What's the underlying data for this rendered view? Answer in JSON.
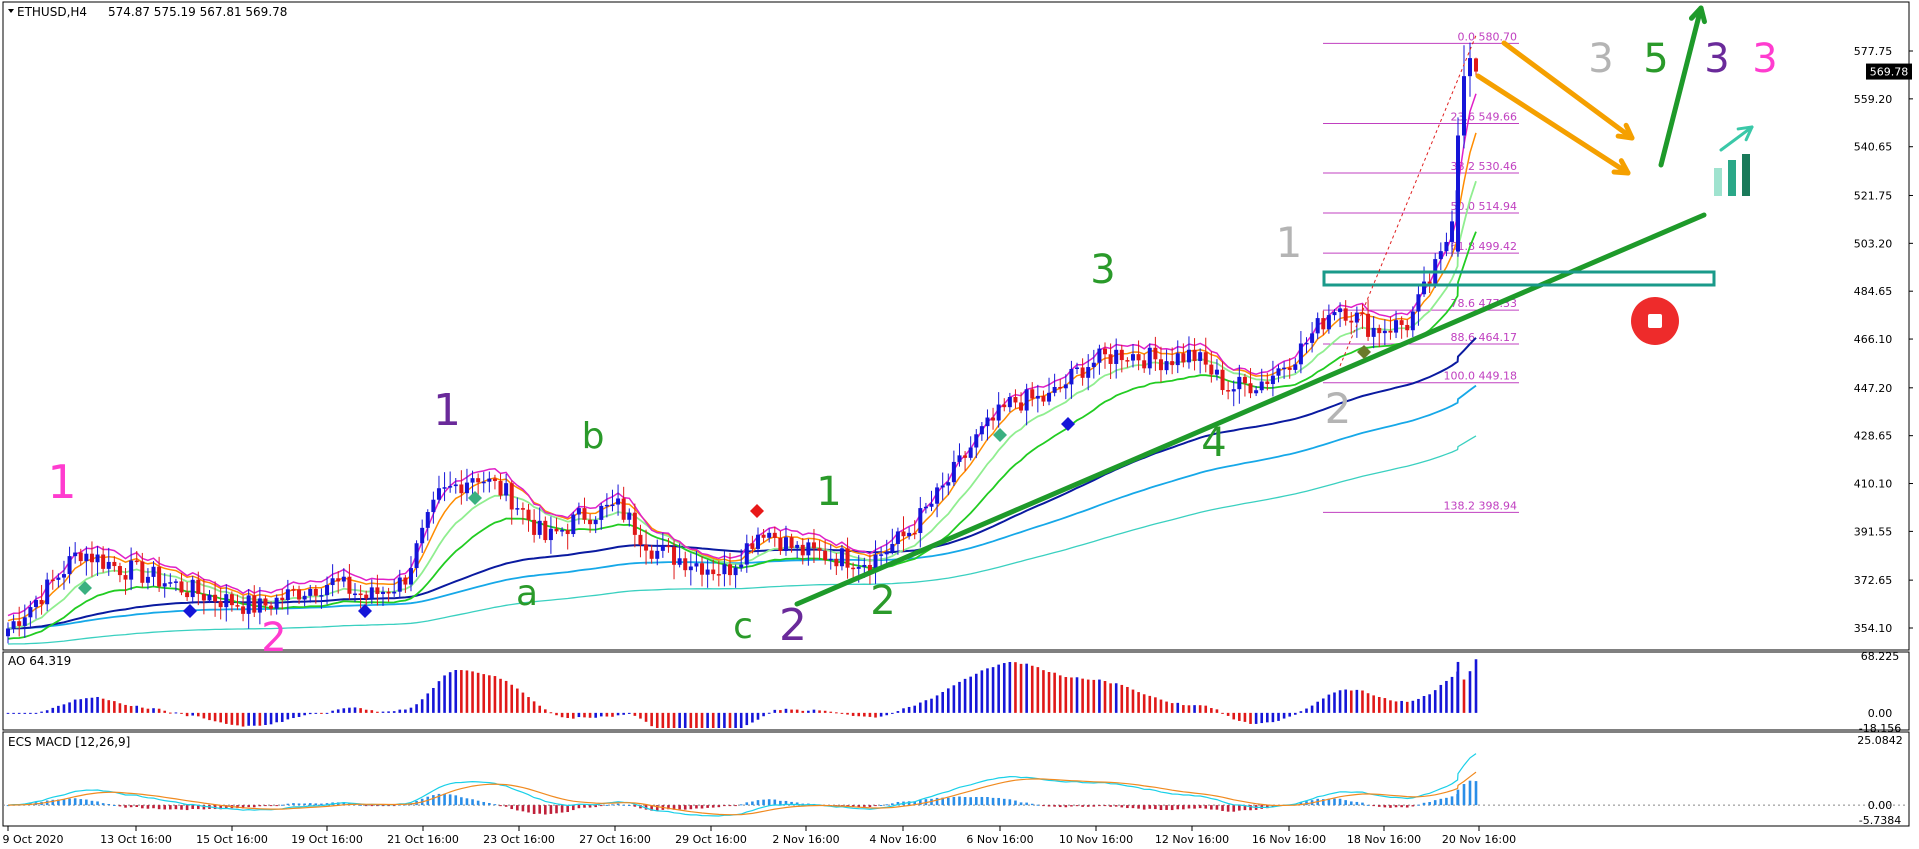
{
  "colors": {
    "bull": "#1515d8",
    "bear": "#e01818",
    "grid": "#c8c8c8",
    "fib": "#c040c0",
    "ema_pink": "#e020c8",
    "ema_orange": "#ff8c00",
    "ema_light_green": "#90ee90",
    "ema_green": "#22cc22",
    "ema_navy": "#0a1aa0",
    "ema_sky": "#16a8e8",
    "ema_cyan": "#3ad0c0",
    "trend": "#1e9a2a",
    "arrow_orange": "#f5a000",
    "box": "#1a9a8a",
    "wave_pink": "#ff3ccf",
    "wave_purple": "#6a2a9a",
    "wave_green": "#2a9a2a",
    "wave_gray": "#b4b4b4",
    "stop": "#ee2b2b"
  },
  "header": {
    "symbol": "ETHUSD,H4",
    "ohlc": "574.87 575.19 567.81 569.78"
  },
  "main_axis": {
    "ticks": [
      "577.75",
      "559.20",
      "540.65",
      "521.75",
      "503.20",
      "484.65",
      "466.10",
      "447.20",
      "428.65",
      "410.10",
      "391.55",
      "372.65",
      "354.10"
    ],
    "price_label": "569.78"
  },
  "fib_levels": [
    {
      "label": "0.0 580.70",
      "price": 580.7
    },
    {
      "label": "23.6 549.66",
      "price": 549.66
    },
    {
      "label": "38.2 530.46",
      "price": 530.46
    },
    {
      "label": "50.0 514.94",
      "price": 514.94
    },
    {
      "label": "61.8 499.42",
      "price": 499.42
    },
    {
      "label": "78.6 477.33",
      "price": 477.33
    },
    {
      "label": "88.6 464.17",
      "price": 464.17
    },
    {
      "label": "100.0 449.18",
      "price": 449.18
    },
    {
      "label": "138.2 398.94",
      "price": 398.94
    }
  ],
  "waves": [
    {
      "text": "1",
      "color": "wave_pink"
    },
    {
      "text": "2",
      "color": "wave_pink"
    },
    {
      "text": "1",
      "color": "wave_purple"
    },
    {
      "text": "a",
      "color": "wave_green"
    },
    {
      "text": "b",
      "color": "wave_green"
    },
    {
      "text": "c",
      "color": "wave_green"
    },
    {
      "text": "2",
      "color": "wave_purple"
    },
    {
      "text": "1",
      "color": "wave_green"
    },
    {
      "text": "2",
      "color": "wave_green"
    },
    {
      "text": "3",
      "color": "wave_green"
    },
    {
      "text": "4",
      "color": "wave_green"
    },
    {
      "text": "1",
      "color": "wave_gray"
    },
    {
      "text": "2",
      "color": "wave_gray"
    },
    {
      "text": "3",
      "color": "wave_gray"
    },
    {
      "text": "5",
      "color": "wave_green"
    },
    {
      "text": "3",
      "color": "wave_purple"
    },
    {
      "text": "3",
      "color": "wave_pink"
    }
  ],
  "ao": {
    "label": "AO 64.319",
    "ticks": [
      "68.225",
      "0.00",
      "-18.156"
    ]
  },
  "macd": {
    "label": "ECS MACD [12,26,9]",
    "ticks": [
      "25.0842",
      "0.00",
      "-5.7384"
    ]
  },
  "time_axis": [
    "9 Oct 2020",
    "13 Oct 16:00",
    "15 Oct 16:00",
    "19 Oct 16:00",
    "21 Oct 16:00",
    "23 Oct 16:00",
    "27 Oct 16:00",
    "29 Oct 16:00",
    "2 Nov 16:00",
    "4 Nov 16:00",
    "6 Nov 16:00",
    "10 Nov 16:00",
    "12 Nov 16:00",
    "16 Nov 16:00",
    "18 Nov 16:00",
    "20 Nov 16:00"
  ],
  "chart_data": [
    {
      "type": "candlestick",
      "title": "ETHUSD,H4",
      "ylim": [
        345,
        588
      ],
      "x_range": [
        "9 Oct 2020",
        "20 Nov 2020"
      ],
      "close_path": [
        {
          "t": "9 Oct 2020",
          "close": 354
        },
        {
          "t": "10 Oct",
          "close": 368
        },
        {
          "t": "11 Oct",
          "close": 384
        },
        {
          "t": "12 Oct",
          "close": 378
        },
        {
          "t": "13 Oct 16:00",
          "close": 374
        },
        {
          "t": "14 Oct",
          "close": 369
        },
        {
          "t": "15 Oct 16:00",
          "close": 365
        },
        {
          "t": "16 Oct",
          "close": 362
        },
        {
          "t": "17 Oct",
          "close": 368
        },
        {
          "t": "18 Oct",
          "close": 372
        },
        {
          "t": "19 Oct 16:00",
          "close": 366
        },
        {
          "t": "20 Oct",
          "close": 372
        },
        {
          "t": "21 Oct 16:00",
          "close": 405
        },
        {
          "t": "22 Oct",
          "close": 414
        },
        {
          "t": "23 Oct 16:00",
          "close": 405
        },
        {
          "t": "24 Oct",
          "close": 388
        },
        {
          "t": "26 Oct",
          "close": 398
        },
        {
          "t": "27 Oct 16:00",
          "close": 401
        },
        {
          "t": "28 Oct",
          "close": 384
        },
        {
          "t": "29 Oct 16:00",
          "close": 380
        },
        {
          "t": "30 Oct",
          "close": 376
        },
        {
          "t": "31 Oct",
          "close": 393
        },
        {
          "t": "1 Nov",
          "close": 384
        },
        {
          "t": "2 Nov 16:00",
          "close": 382
        },
        {
          "t": "3 Nov",
          "close": 380
        },
        {
          "t": "4 Nov 16:00",
          "close": 390
        },
        {
          "t": "5 Nov",
          "close": 407
        },
        {
          "t": "6 Nov 16:00",
          "close": 428
        },
        {
          "t": "7 Nov",
          "close": 442
        },
        {
          "t": "9 Nov",
          "close": 443
        },
        {
          "t": "10 Nov 16:00",
          "close": 456
        },
        {
          "t": "11 Nov",
          "close": 461
        },
        {
          "t": "12 Nov 16:00",
          "close": 458
        },
        {
          "t": "13 Nov",
          "close": 460
        },
        {
          "t": "14 Nov",
          "close": 447
        },
        {
          "t": "15 Nov",
          "close": 450
        },
        {
          "t": "16 Nov 16:00",
          "close": 462
        },
        {
          "t": "17 Nov",
          "close": 480
        },
        {
          "t": "18 Nov 16:00",
          "close": 470
        },
        {
          "t": "19 Nov",
          "close": 472
        },
        {
          "t": "20 Nov 16:00",
          "close": 500
        },
        {
          "t": "21 Nov",
          "close": 570
        }
      ],
      "last": {
        "open": 574.87,
        "high": 575.19,
        "low": 567.81,
        "close": 569.78
      }
    },
    {
      "type": "bar",
      "title": "AO 64.319",
      "ylim": [
        -18.156,
        68.225
      ],
      "last": 64.319
    },
    {
      "type": "line",
      "title": "ECS MACD [12,26,9]",
      "ylim": [
        -5.7384,
        25.0842
      ]
    }
  ]
}
